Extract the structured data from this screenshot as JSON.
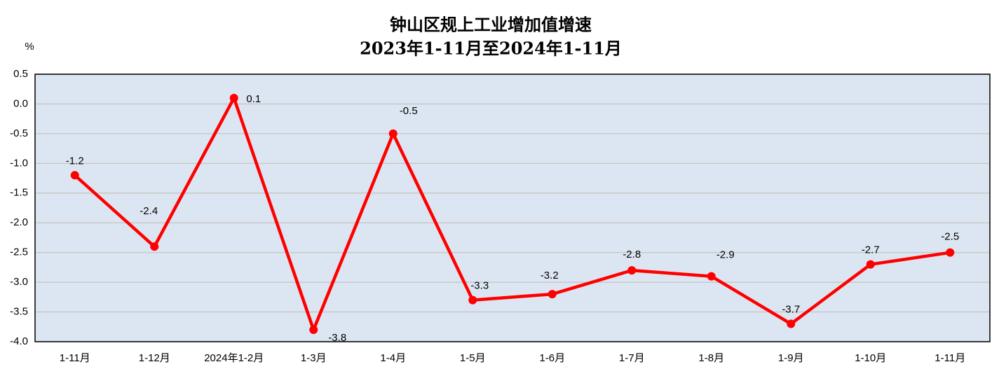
{
  "chart_data": {
    "type": "line",
    "title": "钟山区规上工业增加值增速",
    "subtitle": "2023年1-11月至2024年1-11月",
    "y_label": "%",
    "categories": [
      "1-11月",
      "1-12月",
      "2024年1-2月",
      "1-3月",
      "1-4月",
      "1-5月",
      "1-6月",
      "1-7月",
      "1-8月",
      "1-9月",
      "1-10月",
      "1-11月"
    ],
    "series": [
      {
        "name": "增速",
        "color": "#ff0000",
        "values": [
          -1.2,
          -2.4,
          0.1,
          -3.8,
          -0.5,
          -3.3,
          -3.2,
          -2.8,
          -2.9,
          -3.7,
          -2.7,
          -2.5
        ]
      }
    ],
    "ylim": [
      -4,
      0.5
    ],
    "yticks": [
      {
        "value": -4,
        "label": "-4.0"
      },
      {
        "value": -3.5,
        "label": "-3.5"
      },
      {
        "value": -3,
        "label": "-3.0"
      },
      {
        "value": -2.5,
        "label": "-2.5"
      },
      {
        "value": -2,
        "label": "-2.0"
      },
      -1.5,
      {
        "value": -1,
        "label": "-1.0"
      },
      -0.5,
      {
        "value": 0,
        "label": "0.0"
      },
      0.5
    ],
    "grid": true
  }
}
